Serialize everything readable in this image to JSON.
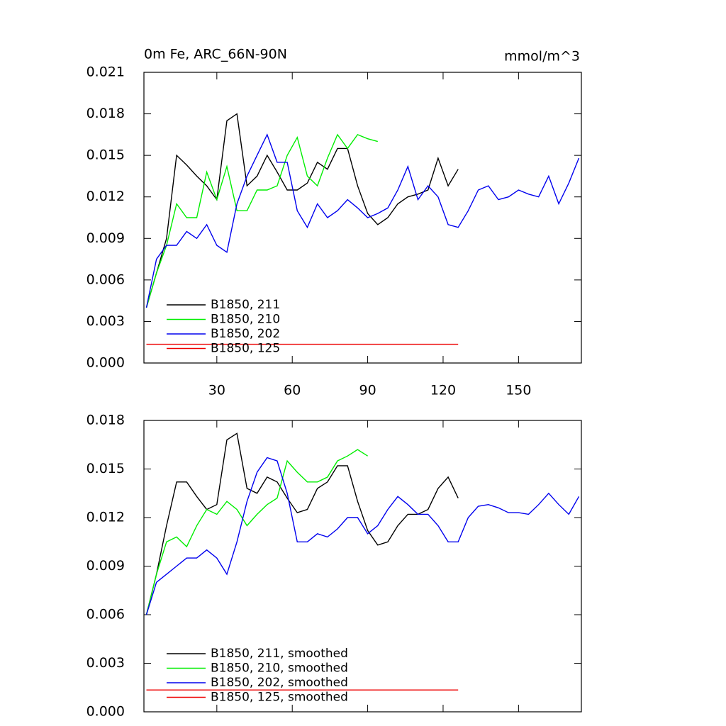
{
  "chart_data": [
    {
      "type": "line",
      "title": "0m Fe, ARC_66N-90N",
      "units": "mmol/m^3",
      "x": [
        2,
        6,
        10,
        14,
        18,
        22,
        26,
        30,
        34,
        38,
        42,
        46,
        50,
        54,
        58,
        62,
        66,
        70,
        74,
        78,
        82,
        86,
        90,
        94,
        98,
        102,
        106,
        110,
        114,
        118,
        122,
        126,
        130,
        134,
        138,
        142,
        146,
        150,
        154,
        158,
        162,
        166,
        170,
        174
      ],
      "series": [
        {
          "name": "B1850, 211",
          "color": "#000000",
          "values": [
            0.004,
            0.0065,
            0.009,
            0.015,
            0.0143,
            0.0135,
            0.0128,
            0.0118,
            0.0175,
            0.018,
            0.0128,
            0.0135,
            0.015,
            0.0138,
            0.0125,
            0.0125,
            0.013,
            0.0145,
            0.014,
            0.0155,
            0.0155,
            0.0128,
            0.0108,
            0.01,
            0.0105,
            0.0115,
            0.012,
            0.0122,
            0.0125,
            0.0148,
            0.0128,
            0.014,
            null,
            null,
            null,
            null,
            null,
            null,
            null,
            null,
            null,
            null,
            null,
            null
          ]
        },
        {
          "name": "B1850, 210",
          "color": "#00ee00",
          "values": [
            0.004,
            0.0065,
            0.0085,
            0.0115,
            0.0105,
            0.0105,
            0.0138,
            0.0118,
            0.0142,
            0.011,
            0.011,
            0.0125,
            0.0125,
            0.0128,
            0.015,
            0.0163,
            0.0135,
            0.0128,
            0.0148,
            0.0165,
            0.0155,
            0.0165,
            0.0162,
            0.016,
            null,
            null,
            null,
            null,
            null,
            null,
            null,
            null,
            null,
            null,
            null,
            null,
            null,
            null,
            null,
            null,
            null,
            null,
            null,
            null
          ]
        },
        {
          "name": "B1850, 202",
          "color": "#0000ee",
          "values": [
            0.004,
            0.0075,
            0.0085,
            0.0085,
            0.0095,
            0.009,
            0.01,
            0.0085,
            0.008,
            0.0115,
            0.0135,
            0.015,
            0.0165,
            0.0145,
            0.0145,
            0.011,
            0.0098,
            0.0115,
            0.0105,
            0.011,
            0.0118,
            0.0112,
            0.0105,
            0.0108,
            0.0112,
            0.0125,
            0.0142,
            0.0118,
            0.0128,
            0.012,
            0.01,
            0.0098,
            0.011,
            0.0125,
            0.0128,
            0.0118,
            0.012,
            0.0125,
            0.0122,
            0.012,
            0.0135,
            0.0115,
            0.013,
            0.0148
          ]
        },
        {
          "name": "B1850, 125",
          "color": "#ee0000",
          "values": [
            0.00135,
            0.00135,
            0.00135,
            0.00135,
            0.00135,
            0.00135,
            0.00135,
            0.00135,
            0.00135,
            0.00135,
            0.00135,
            0.00135,
            0.00135,
            0.00135,
            0.00135,
            0.00135,
            0.00135,
            0.00135,
            0.00135,
            0.00135,
            0.00135,
            0.00135,
            0.00135,
            0.00135,
            0.00135,
            0.00135,
            0.00135,
            0.00135,
            0.00135,
            0.00135,
            0.00135,
            0.00135,
            null,
            null,
            null,
            null,
            null,
            null,
            null,
            null,
            null,
            null,
            null,
            null
          ]
        }
      ],
      "xlim": [
        1,
        175
      ],
      "xticks": [
        30,
        60,
        90,
        120,
        150
      ],
      "xtick_labels": true,
      "ylim": [
        0,
        0.021
      ],
      "yticks": [
        {
          "value": 0,
          "label": "0.000"
        },
        {
          "value": 0.003,
          "label": "0.003"
        },
        {
          "value": 0.006,
          "label": "0.006"
        },
        {
          "value": 0.009,
          "label": "0.009"
        },
        {
          "value": 0.012,
          "label": "0.012"
        },
        {
          "value": 0.015,
          "label": "0.015"
        },
        {
          "value": 0.018,
          "label": "0.018"
        },
        {
          "value": 0.021,
          "label": "0.021"
        }
      ],
      "legend": "lower left"
    },
    {
      "type": "line",
      "x": [
        2,
        6,
        10,
        14,
        18,
        22,
        26,
        30,
        34,
        38,
        42,
        46,
        50,
        54,
        58,
        62,
        66,
        70,
        74,
        78,
        82,
        86,
        90,
        94,
        98,
        102,
        106,
        110,
        114,
        118,
        122,
        126,
        130,
        134,
        138,
        142,
        146,
        150,
        154,
        158,
        162,
        166,
        170,
        174
      ],
      "series": [
        {
          "name": "B1850, 211, smoothed",
          "color": "#000000",
          "values": [
            0.006,
            0.0085,
            0.0115,
            0.0142,
            0.0142,
            0.0133,
            0.0125,
            0.0128,
            0.0168,
            0.0172,
            0.0138,
            0.0135,
            0.0145,
            0.0142,
            0.0132,
            0.0123,
            0.0125,
            0.0138,
            0.0142,
            0.0152,
            0.0152,
            0.013,
            0.0112,
            0.0103,
            0.0105,
            0.0115,
            0.0122,
            0.0122,
            0.0125,
            0.0138,
            0.0145,
            0.0132,
            null,
            null,
            null,
            null,
            null,
            null,
            null,
            null,
            null,
            null,
            null,
            null
          ]
        },
        {
          "name": "B1850, 210, smoothed",
          "color": "#00ee00",
          "values": [
            0.006,
            0.0085,
            0.0105,
            0.0108,
            0.0102,
            0.0115,
            0.0125,
            0.0122,
            0.013,
            0.0125,
            0.0115,
            0.0122,
            0.0128,
            0.0132,
            0.0155,
            0.0148,
            0.0142,
            0.0142,
            0.0145,
            0.0155,
            0.0158,
            0.0162,
            0.0158,
            null,
            null,
            null,
            null,
            null,
            null,
            null,
            null,
            null,
            null,
            null,
            null,
            null,
            null,
            null,
            null,
            null,
            null,
            null,
            null,
            null
          ]
        },
        {
          "name": "B1850, 202, smoothed",
          "color": "#0000ee",
          "values": [
            0.006,
            0.008,
            0.0085,
            0.009,
            0.0095,
            0.0095,
            0.01,
            0.0095,
            0.0085,
            0.0105,
            0.013,
            0.0148,
            0.0157,
            0.0155,
            0.0135,
            0.0105,
            0.0105,
            0.011,
            0.0108,
            0.0113,
            0.012,
            0.012,
            0.011,
            0.0115,
            0.0125,
            0.0133,
            0.0128,
            0.0122,
            0.0122,
            0.0115,
            0.0105,
            0.0105,
            0.012,
            0.0127,
            0.0128,
            0.0126,
            0.0123,
            0.0123,
            0.0122,
            0.0128,
            0.0135,
            0.0128,
            0.0122,
            0.0133
          ]
        },
        {
          "name": "B1850, 125, smoothed",
          "color": "#ee0000",
          "values": [
            0.00135,
            0.00135,
            0.00135,
            0.00135,
            0.00135,
            0.00135,
            0.00135,
            0.00135,
            0.00135,
            0.00135,
            0.00135,
            0.00135,
            0.00135,
            0.00135,
            0.00135,
            0.00135,
            0.00135,
            0.00135,
            0.00135,
            0.00135,
            0.00135,
            0.00135,
            0.00135,
            0.00135,
            0.00135,
            0.00135,
            0.00135,
            0.00135,
            0.00135,
            0.00135,
            0.00135,
            0.00135,
            null,
            null,
            null,
            null,
            null,
            null,
            null,
            null,
            null,
            null,
            null,
            null
          ]
        }
      ],
      "xlim": [
        1,
        175
      ],
      "xticks": [
        30,
        60,
        90,
        120,
        150
      ],
      "xtick_labels": false,
      "ylim": [
        0,
        0.018
      ],
      "yticks": [
        {
          "value": 0,
          "label": "0.000"
        },
        {
          "value": 0.003,
          "label": "0.003"
        },
        {
          "value": 0.006,
          "label": "0.006"
        },
        {
          "value": 0.009,
          "label": "0.009"
        },
        {
          "value": 0.012,
          "label": "0.012"
        },
        {
          "value": 0.015,
          "label": "0.015"
        },
        {
          "value": 0.018,
          "label": "0.018"
        }
      ],
      "legend": "lower left"
    }
  ]
}
